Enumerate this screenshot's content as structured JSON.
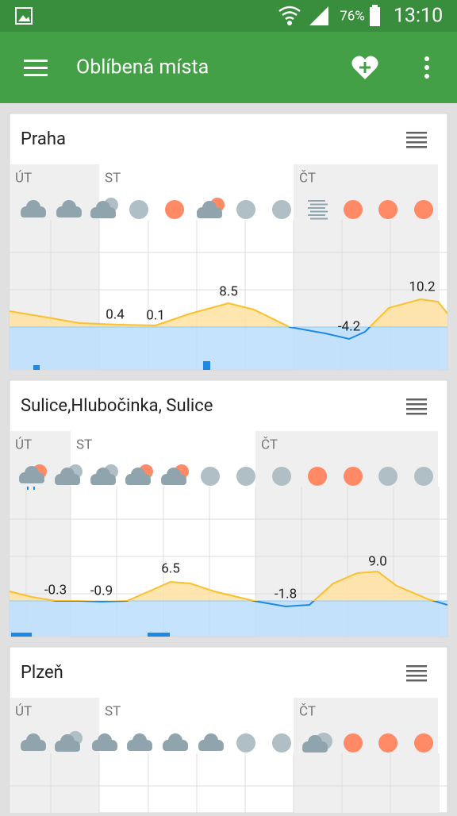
{
  "status_bar": {
    "battery": "76%",
    "time": "13:10"
  },
  "app_bar": {
    "title": "Oblíbená místa"
  },
  "cards": [
    {
      "name": "Praha",
      "days": [
        "ÚT",
        "ST",
        "ČT"
      ],
      "temperatures": [
        "0.4",
        "0.1",
        "8.5",
        "-4.2",
        "10.2"
      ]
    },
    {
      "name": "Sulice,Hlubočinka, Sulice",
      "days": [
        "ÚT",
        "ST",
        "ČT"
      ],
      "temperatures": [
        "-0.3",
        "-0.9",
        "6.5",
        "-1.8",
        "9.0"
      ]
    },
    {
      "name": "Plzeň",
      "days": [
        "ÚT",
        "ST",
        "ČT"
      ],
      "temperatures": []
    }
  ]
}
